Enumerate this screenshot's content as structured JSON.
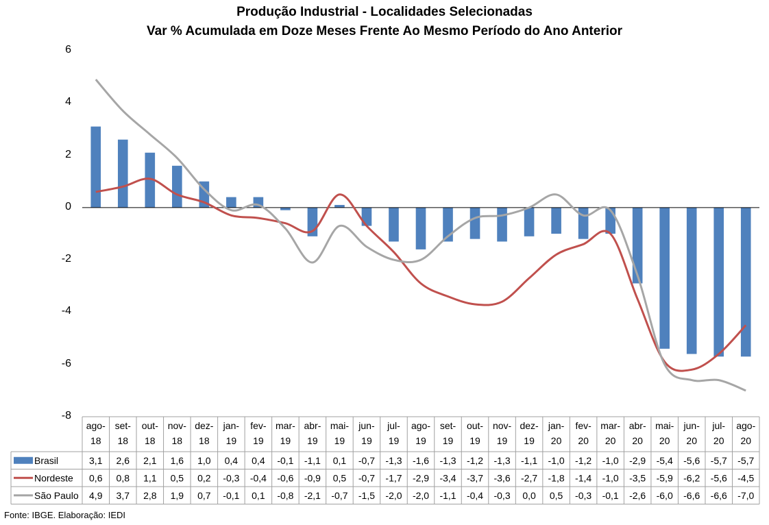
{
  "chart_data": {
    "type": "bar",
    "title": "Produção Industrial - Localidades Selecionadas",
    "subtitle": "Var % Acumulada em Doze Meses Frente Ao Mesmo Período do Ano Anterior",
    "ylim": [
      -8,
      6
    ],
    "yticks": [
      "6",
      "4",
      "2",
      "0",
      "-2",
      "-4",
      "-6",
      "-8"
    ],
    "categories": [
      "ago-18",
      "set-18",
      "out-18",
      "nov-18",
      "dez-18",
      "jan-19",
      "fev-19",
      "mar-19",
      "abr-19",
      "mai-19",
      "jun-19",
      "jul-19",
      "ago-19",
      "set-19",
      "out-19",
      "nov-19",
      "dez-19",
      "jan-20",
      "fev-20",
      "mar-20",
      "abr-20",
      "mai-20",
      "jun-20",
      "jul-20",
      "ago-20"
    ],
    "category_lines": [
      [
        "ago-",
        "18"
      ],
      [
        "set-",
        "18"
      ],
      [
        "out-",
        "18"
      ],
      [
        "nov-",
        "18"
      ],
      [
        "dez-",
        "18"
      ],
      [
        "jan-",
        "19"
      ],
      [
        "fev-",
        "19"
      ],
      [
        "mar-",
        "19"
      ],
      [
        "abr-",
        "19"
      ],
      [
        "mai-",
        "19"
      ],
      [
        "jun-",
        "19"
      ],
      [
        "jul-",
        "19"
      ],
      [
        "ago-",
        "19"
      ],
      [
        "set-",
        "19"
      ],
      [
        "out-",
        "19"
      ],
      [
        "nov-",
        "19"
      ],
      [
        "dez-",
        "19"
      ],
      [
        "jan-",
        "20"
      ],
      [
        "fev-",
        "20"
      ],
      [
        "mar-",
        "20"
      ],
      [
        "abr-",
        "20"
      ],
      [
        "mai-",
        "20"
      ],
      [
        "jun-",
        "20"
      ],
      [
        "jul-",
        "20"
      ],
      [
        "ago-",
        "20"
      ]
    ],
    "series": [
      {
        "name": "Brasil",
        "kind": "bar",
        "color": "#4f81bd",
        "values": [
          3.1,
          2.6,
          2.1,
          1.6,
          1.0,
          0.4,
          0.4,
          -0.1,
          -1.1,
          0.1,
          -0.7,
          -1.3,
          -1.6,
          -1.3,
          -1.2,
          -1.3,
          -1.1,
          -1.0,
          -1.2,
          -1.0,
          -2.9,
          -5.4,
          -5.6,
          -5.7,
          -5.7
        ],
        "labels": [
          "3,1",
          "2,6",
          "2,1",
          "1,6",
          "1,0",
          "0,4",
          "0,4",
          "-0,1",
          "-1,1",
          "0,1",
          "-0,7",
          "-1,3",
          "-1,6",
          "-1,3",
          "-1,2",
          "-1,3",
          "-1,1",
          "-1,0",
          "-1,2",
          "-1,0",
          "-2,9",
          "-5,4",
          "-5,6",
          "-5,7",
          "-5,7"
        ]
      },
      {
        "name": "Nordeste",
        "kind": "line",
        "color": "#c0504d",
        "values": [
          0.6,
          0.8,
          1.1,
          0.5,
          0.2,
          -0.3,
          -0.4,
          -0.6,
          -0.9,
          0.5,
          -0.7,
          -1.7,
          -2.9,
          -3.4,
          -3.7,
          -3.6,
          -2.7,
          -1.8,
          -1.4,
          -1.0,
          -3.5,
          -5.9,
          -6.2,
          -5.6,
          -4.5
        ],
        "labels": [
          "0,6",
          "0,8",
          "1,1",
          "0,5",
          "0,2",
          "-0,3",
          "-0,4",
          "-0,6",
          "-0,9",
          "0,5",
          "-0,7",
          "-1,7",
          "-2,9",
          "-3,4",
          "-3,7",
          "-3,6",
          "-2,7",
          "-1,8",
          "-1,4",
          "-1,0",
          "-3,5",
          "-5,9",
          "-6,2",
          "-5,6",
          "-4,5"
        ]
      },
      {
        "name": "São Paulo",
        "kind": "line",
        "color": "#a6a6a6",
        "values": [
          4.9,
          3.7,
          2.8,
          1.9,
          0.7,
          -0.1,
          0.1,
          -0.8,
          -2.1,
          -0.7,
          -1.5,
          -2.0,
          -2.0,
          -1.1,
          -0.4,
          -0.3,
          0.0,
          0.5,
          -0.3,
          -0.1,
          -2.6,
          -6.0,
          -6.6,
          -6.6,
          -7.0
        ],
        "labels": [
          "4,9",
          "3,7",
          "2,8",
          "1,9",
          "0,7",
          "-0,1",
          "0,1",
          "-0,8",
          "-2,1",
          "-0,7",
          "-1,5",
          "-2,0",
          "-2,0",
          "-1,1",
          "-0,4",
          "-0,3",
          "0,0",
          "0,5",
          "-0,3",
          "-0,1",
          "-2,6",
          "-6,0",
          "-6,6",
          "-6,6",
          "-7,0"
        ]
      }
    ],
    "source": "Fonte: IBGE. Elaboração: IEDI"
  }
}
